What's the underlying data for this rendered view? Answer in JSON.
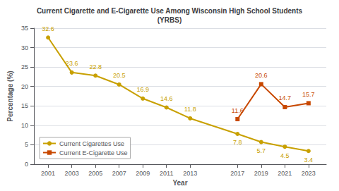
{
  "chart_data": {
    "type": "line",
    "title": "Current Cigarette and E-Cigarette Use Among Wisconsin High School Students\n(YRBS)",
    "x_label": "Year",
    "y_label": "Percentage (%)",
    "series": [
      {
        "name": "Current Cigarettes Use",
        "color": "#C8A000",
        "marker": "circle",
        "x": [
          2001,
          2003,
          2005,
          2007,
          2009,
          2011,
          2013,
          2017,
          2019,
          2021,
          2023
        ],
        "values": [
          32.6,
          23.6,
          22.8,
          20.5,
          16.9,
          14.6,
          11.8,
          7.8,
          5.7,
          4.5,
          3.4
        ]
      },
      {
        "name": "Current E-Cigarette Use",
        "color": "#C84800",
        "marker": "square",
        "x": [
          2017,
          2019,
          2021,
          2023
        ],
        "values": [
          11.6,
          20.6,
          14.7,
          15.7
        ]
      }
    ],
    "xlim": [
      1999.8,
      2024.5
    ],
    "xticks": [
      2001,
      2003,
      2005,
      2007,
      2009,
      2011,
      2013,
      2017,
      2019,
      2021,
      2023
    ],
    "ylim": [
      0,
      35
    ],
    "yticks": [
      0,
      5,
      10,
      15,
      20,
      25,
      30,
      35
    ],
    "grid": true,
    "legend": "lower left",
    "data_labels": true
  }
}
